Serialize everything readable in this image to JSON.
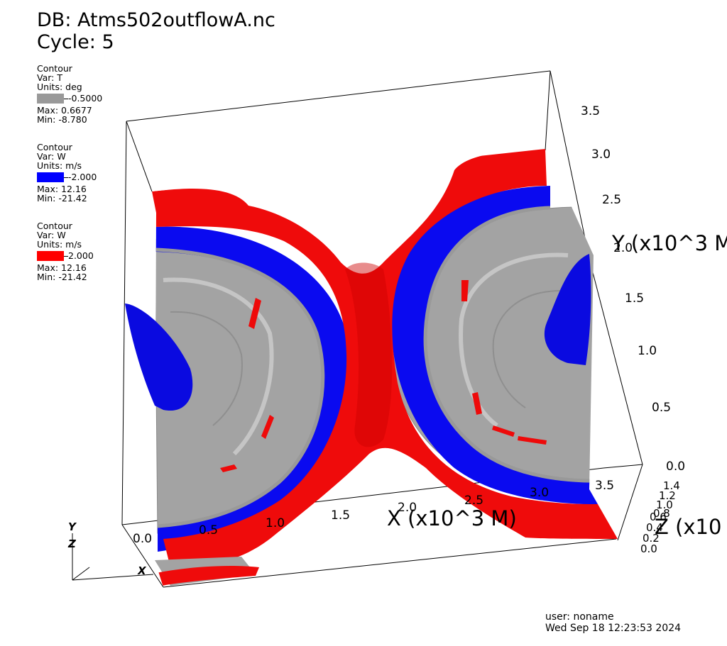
{
  "header": {
    "db": "DB: Atms502outflowA.nc",
    "cycle": "Cycle: 5"
  },
  "legends": [
    {
      "plot": "Contour",
      "var": "Var: T",
      "units": "Units: deg",
      "level": "-0.5000",
      "color": "#999999",
      "max": "Max:  0.6677",
      "min": "Min: -8.780"
    },
    {
      "plot": "Contour",
      "var": "Var: W",
      "units": "Units: m/s",
      "level": "-2.000",
      "color": "#0000ff",
      "max": "Max:  12.16",
      "min": "Min: -21.42"
    },
    {
      "plot": "Contour",
      "var": "Var: W",
      "units": "Units: m/s",
      "level": "2.000",
      "color": "#ff0000",
      "max": "Max:  12.16",
      "min": "Min: -21.42"
    }
  ],
  "axes": {
    "x_title": "X (x10^3 M)",
    "x_ticks": [
      "0.0",
      "0.5",
      "1.0",
      "1.5",
      "2.0",
      "2.5",
      "3.0",
      "3.5"
    ],
    "y_title": "Y (x10^3 M",
    "y_ticks": [
      "0.0",
      "0.5",
      "1.0",
      "1.5",
      "2.0",
      "2.5",
      "3.0",
      "3.5"
    ],
    "z_title": "Z (x10",
    "z_ticks": [
      "0.0",
      "0.2",
      "0.4",
      "0.6",
      "0.8",
      "1.0",
      "1.2",
      "1.4"
    ],
    "triad": [
      "Y",
      "Z",
      "X"
    ]
  },
  "footer": {
    "user": "user: noname",
    "timestamp": "Wed Sep 18 12:23:53 2024"
  }
}
